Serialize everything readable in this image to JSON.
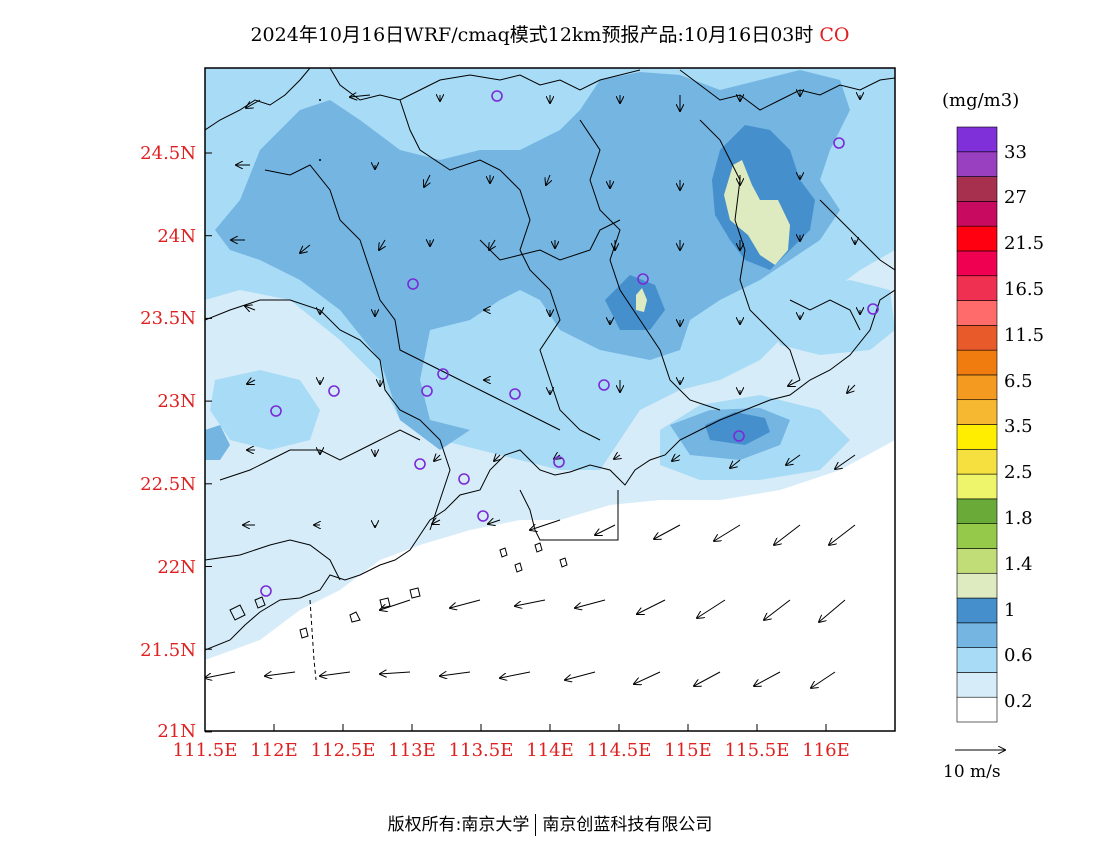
{
  "title": "2024年10月16日WRF/cmaq模式12km预报产品:10月16日03时",
  "species": "CO",
  "lat_labels": [
    "24.5N",
    "24N",
    "23.5N",
    "23N",
    "22.5N",
    "22N",
    "21.5N",
    "21N"
  ],
  "lon_labels": [
    "111.5E",
    "112E",
    "112.5E",
    "113E",
    "113.5E",
    "114E",
    "114.5E",
    "115E",
    "115.5E",
    "116E"
  ],
  "colorbar": {
    "unit": "(mg/m3)",
    "labels": [
      "33",
      "27",
      "21.5",
      "16.5",
      "11.5",
      "6.5",
      "3.5",
      "2.5",
      "1.8",
      "1.4",
      "1",
      "0.6",
      "0.2"
    ],
    "colors": [
      "#ffffff",
      "#d6ecf9",
      "#a8dbf5",
      "#74b5e2",
      "#4590cc",
      "#deebc0",
      "#c0dd78",
      "#94c94a",
      "#6aaa38",
      "#eef56a",
      "#f5e040",
      "#ffee00",
      "#f5b830",
      "#f59a20",
      "#f07c10",
      "#e85a2a",
      "#ff6a6a",
      "#f03050",
      "#f00050",
      "#ff0010",
      "#c80a60",
      "#a8304f",
      "#9840c0",
      "#8030d8"
    ],
    "colors_note": "bottom to top"
  },
  "wind_reference": "10 m/s",
  "footer_left": "版权所有:南京大学",
  "footer_right": "南京创蓝科技有限公司",
  "grid": false
}
